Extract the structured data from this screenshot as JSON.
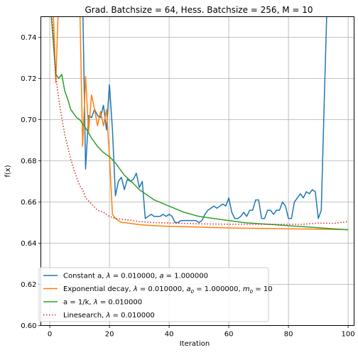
{
  "chart_data": {
    "type": "line",
    "title": "Grad. Batchsize = 64, Hess. Batchsize = 256, M = 10",
    "xlabel": "Iteration",
    "ylabel": "f(x)",
    "xlim": [
      -3,
      102
    ],
    "ylim": [
      0.6,
      0.75
    ],
    "xticks": [
      0,
      20,
      40,
      60,
      80,
      100
    ],
    "yticks": [
      0.6,
      0.62,
      0.64,
      0.66,
      0.68,
      0.7,
      0.72,
      0.74
    ],
    "grid": true,
    "legend_position": "lower-left",
    "series": [
      {
        "name": "Constant a, $\\lambda = 0.010000, a = 1.000000$",
        "color": "#1f77b4",
        "style": "solid",
        "x": [
          0,
          1,
          2,
          3,
          4,
          5,
          6,
          7,
          8,
          9,
          10,
          11,
          12,
          13,
          14,
          15,
          16,
          17,
          18,
          19,
          20,
          21,
          22,
          23,
          24,
          25,
          26,
          27,
          28,
          29,
          30,
          31,
          32,
          33,
          34,
          35,
          36,
          37,
          38,
          39,
          40,
          41,
          42,
          43,
          44,
          45,
          46,
          47,
          48,
          49,
          50,
          51,
          52,
          53,
          54,
          55,
          56,
          57,
          58,
          59,
          60,
          61,
          62,
          63,
          64,
          65,
          66,
          67,
          68,
          69,
          70,
          71,
          72,
          73,
          74,
          75,
          76,
          77,
          78,
          79,
          80,
          81,
          82,
          83,
          84,
          85,
          86,
          87,
          88,
          89,
          90,
          91,
          92,
          93,
          94,
          95
        ],
        "y": [
          0.76,
          0.76,
          0.76,
          0.76,
          0.76,
          0.76,
          0.76,
          0.76,
          0.76,
          0.76,
          0.76,
          0.76,
          0.676,
          0.702,
          0.701,
          0.705,
          0.702,
          0.701,
          0.707,
          0.695,
          0.717,
          0.695,
          0.663,
          0.67,
          0.672,
          0.666,
          0.671,
          0.67,
          0.671,
          0.674,
          0.667,
          0.67,
          0.652,
          0.653,
          0.654,
          0.653,
          0.653,
          0.653,
          0.654,
          0.653,
          0.654,
          0.653,
          0.65,
          0.65,
          0.651,
          0.651,
          0.651,
          0.651,
          0.651,
          0.651,
          0.65,
          0.651,
          0.654,
          0.656,
          0.657,
          0.658,
          0.657,
          0.658,
          0.659,
          0.658,
          0.662,
          0.655,
          0.652,
          0.652,
          0.653,
          0.655,
          0.653,
          0.656,
          0.656,
          0.661,
          0.661,
          0.652,
          0.652,
          0.656,
          0.656,
          0.654,
          0.656,
          0.656,
          0.66,
          0.658,
          0.652,
          0.652,
          0.66,
          0.662,
          0.664,
          0.662,
          0.665,
          0.664,
          0.666,
          0.665,
          0.652,
          0.656,
          0.709,
          0.76,
          0.76,
          0.76
        ]
      },
      {
        "name": "Exponential decay, $\\lambda = 0.010000, a_0 = 1.000000, m_0 = 10$",
        "color": "#ff7f0e",
        "style": "solid",
        "x": [
          0,
          1,
          2,
          3,
          4,
          5,
          6,
          7,
          8,
          9,
          10,
          11,
          12,
          13,
          14,
          15,
          16,
          17,
          18,
          19,
          20,
          21,
          22,
          23,
          24,
          25,
          26,
          28,
          30,
          35,
          40,
          45,
          50,
          55,
          60,
          65,
          70,
          75,
          80,
          85,
          90,
          95,
          100
        ],
        "y": [
          0.76,
          0.76,
          0.718,
          0.76,
          0.76,
          0.76,
          0.76,
          0.76,
          0.76,
          0.76,
          0.76,
          0.687,
          0.721,
          0.694,
          0.712,
          0.705,
          0.697,
          0.704,
          0.697,
          0.705,
          0.682,
          0.654,
          0.652,
          0.651,
          0.65,
          0.65,
          0.6498,
          0.6494,
          0.649,
          0.6485,
          0.6482,
          0.648,
          0.6478,
          0.6476,
          0.6474,
          0.6473,
          0.6472,
          0.6471,
          0.647,
          0.6469,
          0.6468,
          0.6467,
          0.6466
        ]
      },
      {
        "name": "a = 1/k, $\\lambda = 0.010000$",
        "color": "#2ca02c",
        "style": "solid",
        "x": [
          0,
          1,
          2,
          3,
          4,
          5,
          6,
          7,
          8,
          9,
          10,
          11,
          12,
          14,
          16,
          18,
          20,
          22,
          25,
          28,
          30,
          35,
          40,
          45,
          50,
          55,
          60,
          65,
          70,
          75,
          80,
          85,
          90,
          95,
          100
        ],
        "y": [
          0.76,
          0.741,
          0.722,
          0.72,
          0.722,
          0.714,
          0.71,
          0.705,
          0.703,
          0.701,
          0.7,
          0.698,
          0.696,
          0.691,
          0.687,
          0.684,
          0.682,
          0.679,
          0.673,
          0.669,
          0.666,
          0.661,
          0.658,
          0.655,
          0.653,
          0.652,
          0.651,
          0.65,
          0.6495,
          0.649,
          0.6485,
          0.648,
          0.6475,
          0.647,
          0.6465
        ]
      },
      {
        "name": "Linesearch, $\\lambda = 0.010000$",
        "color": "#d62728",
        "style": "dotted",
        "x": [
          0,
          1,
          2,
          3,
          4,
          5,
          6,
          7,
          8,
          9,
          10,
          11,
          12,
          14,
          16,
          18,
          20,
          22,
          25,
          28,
          30,
          35,
          40,
          45,
          50,
          55,
          60,
          65,
          70,
          75,
          80,
          85,
          90,
          95,
          100
        ],
        "y": [
          0.76,
          0.745,
          0.721,
          0.71,
          0.701,
          0.693,
          0.687,
          0.681,
          0.676,
          0.672,
          0.668,
          0.666,
          0.662,
          0.659,
          0.656,
          0.655,
          0.653,
          0.652,
          0.6515,
          0.651,
          0.6505,
          0.65,
          0.6498,
          0.6496,
          0.6494,
          0.6493,
          0.6492,
          0.6492,
          0.6492,
          0.6492,
          0.6492,
          0.6492,
          0.6498,
          0.6496,
          0.6505
        ]
      }
    ]
  }
}
